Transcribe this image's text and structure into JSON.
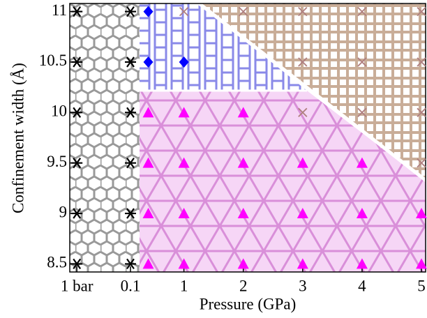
{
  "chart_data": {
    "type": "scatter",
    "xlabel": "Pressure (GPa)",
    "ylabel": "Confinement width (Å)",
    "xlim": [
      4e-05,
      5.07
    ],
    "x_log_until": 0.1,
    "xticks": [
      {
        "value": 0.0001,
        "label": "1 bar"
      },
      0.1,
      1,
      2,
      3,
      4,
      5
    ],
    "ylim": [
      8.42,
      11.08
    ],
    "yticks": [
      8.5,
      9,
      9.5,
      10,
      10.5,
      11
    ],
    "series": [
      {
        "marker": "star",
        "color": "#000000",
        "x": [
          0.0001,
          0.0001,
          0.0001,
          0.0001,
          0.0001,
          0.0001,
          0.1,
          0.1,
          0.1,
          0.1,
          0.1,
          0.1
        ],
        "values": [
          8.5,
          9,
          9.5,
          10,
          10.5,
          11,
          8.5,
          9,
          9.5,
          10,
          10.5,
          11
        ]
      },
      {
        "marker": "diamond",
        "color": "#0000ff",
        "x": [
          0.4,
          0.4,
          1
        ],
        "values": [
          11,
          10.5,
          10.5
        ]
      },
      {
        "marker": "triangle",
        "color": "#ff00ff",
        "x": [
          0.4,
          1,
          2,
          0.4,
          1,
          2,
          3,
          4,
          0.4,
          1,
          2,
          3,
          4,
          5,
          0.4,
          1,
          2,
          3,
          4,
          5
        ],
        "values": [
          10,
          10,
          10,
          9.5,
          9.5,
          9.5,
          9.5,
          9.5,
          9,
          9,
          9,
          9,
          9,
          9,
          8.5,
          8.5,
          8.5,
          8.5,
          8.5,
          8.5
        ]
      },
      {
        "marker": "cross",
        "color": "#b08080",
        "x": [
          1,
          2,
          3,
          4,
          5,
          3,
          4,
          5,
          3,
          4,
          5,
          5
        ],
        "values": [
          11,
          11,
          11,
          11,
          11,
          10.5,
          10.5,
          10.5,
          10,
          10,
          10,
          9.5
        ]
      }
    ]
  }
}
